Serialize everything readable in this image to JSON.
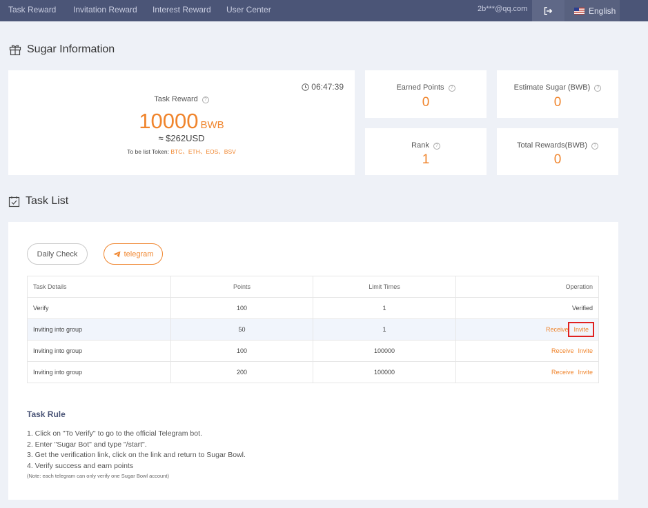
{
  "nav": {
    "items": [
      "Task Reward",
      "Invitation Reward",
      "Interest Reward",
      "User Center"
    ],
    "email": "2b***@qq.com",
    "language": "English"
  },
  "sugar_info": {
    "title": "Sugar Information",
    "task_reward": {
      "label": "Task Reward",
      "amount": "10000",
      "unit": "BWB",
      "usd": "≈ $262USD",
      "tokens_prefix": "To be list Token:",
      "tokens": "BTC、ETH、EOS、BSV",
      "timer": "06:47:39"
    },
    "stats": [
      {
        "label": "Earned Points",
        "value": "0"
      },
      {
        "label": "Estimate Sugar (BWB)",
        "value": "0"
      },
      {
        "label": "Rank",
        "value": "1"
      },
      {
        "label": "Total Rewards(BWB)",
        "value": "0"
      }
    ]
  },
  "task_list": {
    "title": "Task List",
    "tabs": [
      "Daily Check",
      "telegram"
    ],
    "columns": [
      "Task Details",
      "Points",
      "Limit Times",
      "Operation"
    ],
    "rows": [
      {
        "details": "Verify",
        "points": "100",
        "limit": "1",
        "status": "Verified"
      },
      {
        "details": "Inviting into group",
        "points": "50",
        "limit": "1",
        "receive": "Receive",
        "invite": "Invite"
      },
      {
        "details": "Inviting into group",
        "points": "100",
        "limit": "100000",
        "receive": "Receive",
        "invite": "Invite"
      },
      {
        "details": "Inviting into group",
        "points": "200",
        "limit": "100000",
        "receive": "Receive",
        "invite": "Invite"
      }
    ]
  },
  "task_rule": {
    "title": "Task Rule",
    "lines": [
      "1. Click on \"To Verify\" to go to the official Telegram bot.",
      "2. Enter \"Sugar Bot\" and type \"/start\".",
      "3. Get the verification link, click on the link and return to Sugar Bowl.",
      "4. Verify success and earn points"
    ],
    "note": "(Note: each telegram can only verify one Sugar Bowl account)"
  },
  "colors": {
    "nav_bg": "#4b5577",
    "accent": "#f0852d",
    "page_bg": "#eef1f7",
    "highlight_box": "#e02020"
  }
}
